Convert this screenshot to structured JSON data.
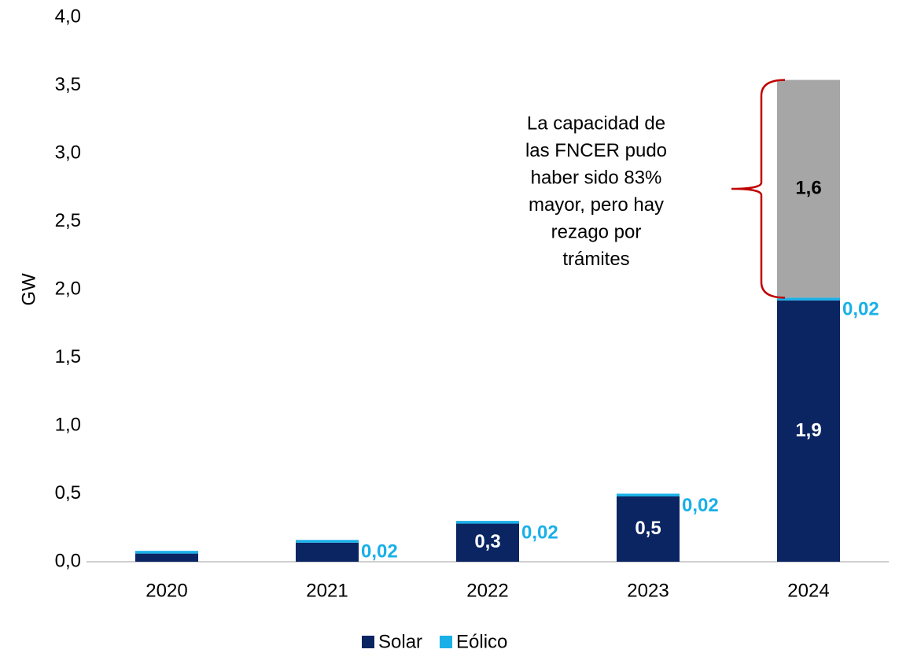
{
  "chart_data": {
    "type": "stacked-bar",
    "y_label": "GW",
    "categories": [
      "2020",
      "2021",
      "2022",
      "2023",
      "2024"
    ],
    "series": [
      {
        "name": "Solar",
        "color": "#0b2562",
        "values": [
          0.06,
          0.14,
          0.28,
          0.48,
          1.92
        ],
        "value_labels": [
          null,
          null,
          "0,3",
          "0,5",
          "1,9"
        ]
      },
      {
        "name": "Eólico",
        "color": "#19b0e8",
        "values": [
          0.02,
          0.02,
          0.02,
          0.02,
          0.02
        ],
        "value_labels": [
          null,
          "0,02",
          "0,02",
          "0,02",
          "0,02"
        ]
      },
      {
        "color": "#a6a6a6",
        "values": [
          null,
          null,
          null,
          null,
          1.6
        ],
        "value_labels": [
          null,
          null,
          null,
          null,
          "1,6"
        ]
      }
    ],
    "ylim": [
      0,
      4
    ],
    "yticks": [
      {
        "value": 0,
        "label": "0,0"
      },
      {
        "value": 0.5,
        "label": "0,5"
      },
      {
        "value": 1,
        "label": "1,0"
      },
      {
        "value": 1.5,
        "label": "1,5"
      },
      {
        "value": 2,
        "label": "2,0"
      },
      {
        "value": 2.5,
        "label": "2,5"
      },
      {
        "value": 3,
        "label": "3,0"
      },
      {
        "value": 3.5,
        "label": "3,5"
      },
      {
        "value": 4,
        "label": "4,0"
      }
    ],
    "annotation": [
      "La capacidad de",
      "las FNCER pudo",
      "haber sido 83%",
      "mayor, pero hay",
      "rezago por",
      "trámites"
    ],
    "annotation_color": "#c00000"
  }
}
